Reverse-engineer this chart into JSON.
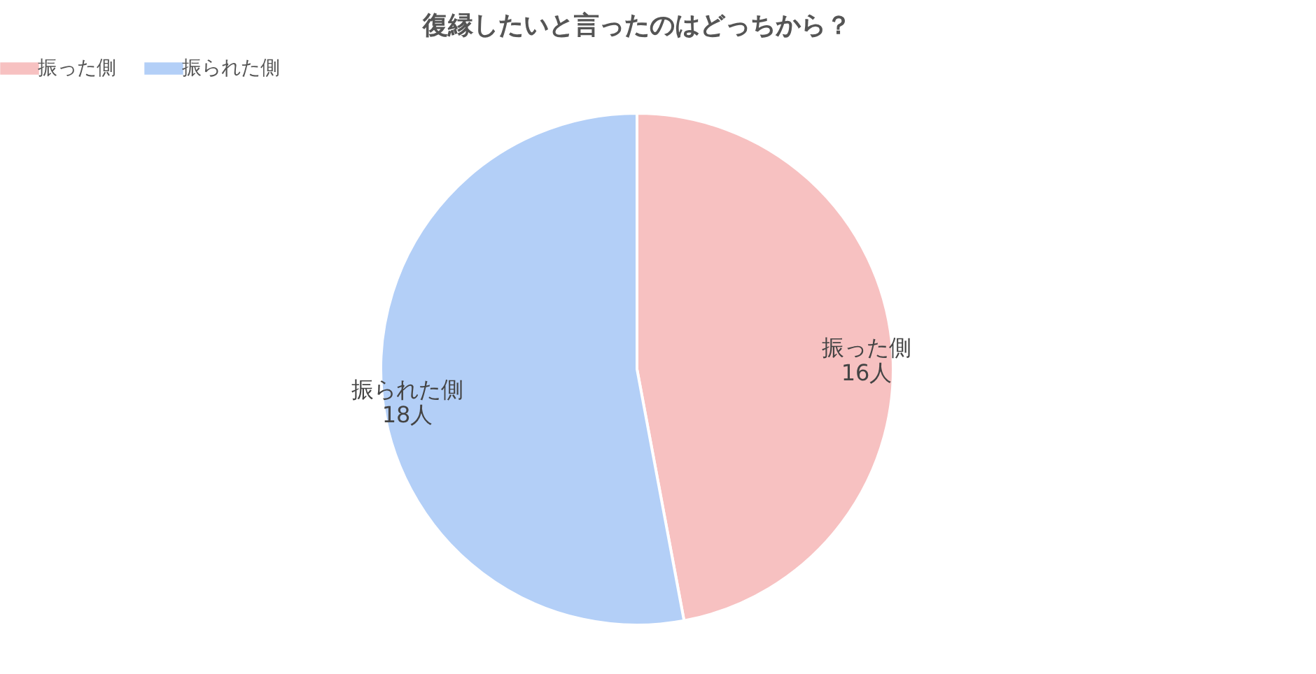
{
  "chart_data": {
    "type": "pie",
    "title": "復縁したいと言ったのはどっちから？",
    "categories": [
      "振った側",
      "振られた側"
    ],
    "values": [
      16,
      18
    ],
    "colors": [
      "#f7c1c1",
      "#b3cff7"
    ],
    "value_labels": [
      "16人",
      "18人"
    ],
    "legend": "top"
  }
}
